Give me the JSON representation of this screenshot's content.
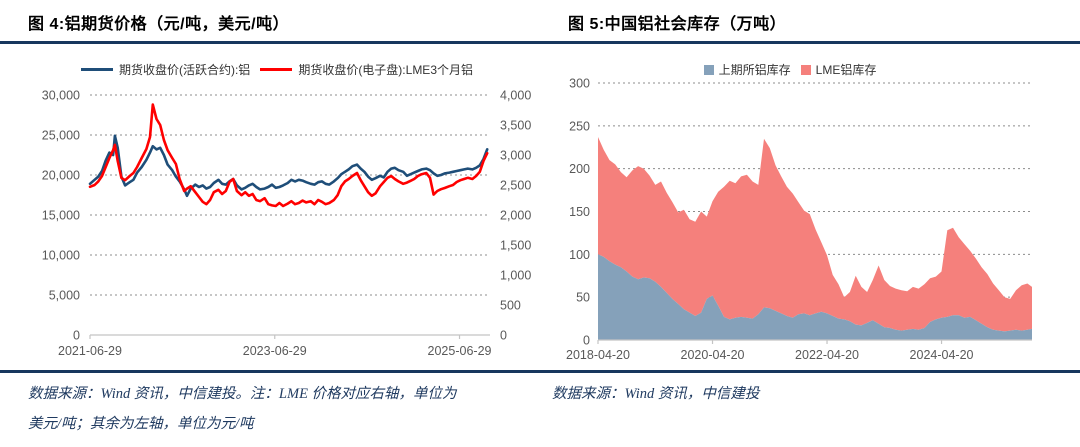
{
  "header": {
    "figure4_title": "图 4:铝期货价格（元/吨，美元/吨）",
    "figure5_title": "图 5:中国铝社会库存（万吨）"
  },
  "footer": {
    "figure4_source_line1": "数据来源：Wind 资讯，中信建投。注：LME 价格对应右轴，单位为",
    "figure4_source_line2": "美元/吨；其余为左轴，单位为元/吨",
    "figure5_source": "数据来源：Wind 资讯，中信建投"
  },
  "colors": {
    "rule": "#17375e",
    "shfe_line": "#1f4e79",
    "lme_line": "#ff0000",
    "shfe_area": "#85a1ba",
    "lme_area": "#f5807c",
    "axis_text": "#595959",
    "grid": "#8c8c8c",
    "baseline": "#c4c4c4",
    "footer_text": "#1f3a60"
  },
  "chart_data": [
    {
      "type": "line",
      "title": "铝期货价格（元/吨，美元/吨）",
      "legend_position": "top",
      "grid": true,
      "x_range": [
        2021.49,
        2025.82
      ],
      "x_ticks": [
        "2021-06-29",
        "2023-06-29",
        "2025-06-29"
      ],
      "x_tick_years": [
        2021.49,
        2023.49,
        2025.49
      ],
      "left_axis": {
        "unit": "元/吨",
        "range": [
          0,
          30000
        ],
        "ticks": [
          "0",
          "5,000",
          "10,000",
          "15,000",
          "20,000",
          "25,000",
          "30,000"
        ]
      },
      "right_axis": {
        "unit": "美元/吨",
        "range": [
          0,
          4000
        ],
        "ticks": [
          "0",
          "500",
          "1,000",
          "1,500",
          "2,000",
          "2,500",
          "3,000",
          "3,500",
          "4,000"
        ]
      },
      "series": [
        {
          "name": "期货收盘价(活跃合约):铝",
          "axis": "left",
          "color": "#1f4e79",
          "x": [
            2021.49,
            2021.54,
            2021.58,
            2021.62,
            2021.66,
            2021.7,
            2021.74,
            2021.76,
            2021.79,
            2021.83,
            2021.87,
            2021.92,
            2021.96,
            2022.0,
            2022.05,
            2022.1,
            2022.14,
            2022.17,
            2022.21,
            2022.25,
            2022.29,
            2022.33,
            2022.38,
            2022.42,
            2022.46,
            2022.51,
            2022.54,
            2022.58,
            2022.63,
            2022.67,
            2022.71,
            2022.75,
            2022.79,
            2022.83,
            2022.88,
            2022.92,
            2022.96,
            2023.0,
            2023.04,
            2023.08,
            2023.13,
            2023.17,
            2023.21,
            2023.25,
            2023.29,
            2023.33,
            2023.38,
            2023.42,
            2023.46,
            2023.5,
            2023.54,
            2023.58,
            2023.63,
            2023.67,
            2023.71,
            2023.75,
            2023.79,
            2023.83,
            2023.88,
            2023.92,
            2023.96,
            2024.0,
            2024.04,
            2024.08,
            2024.13,
            2024.17,
            2024.21,
            2024.25,
            2024.29,
            2024.33,
            2024.38,
            2024.42,
            2024.46,
            2024.5,
            2024.54,
            2024.58,
            2024.63,
            2024.67,
            2024.71,
            2024.75,
            2024.79,
            2024.83,
            2024.88,
            2024.92,
            2024.96,
            2025.0,
            2025.04,
            2025.08,
            2025.13,
            2025.17,
            2025.21,
            2025.25,
            2025.29,
            2025.33,
            2025.38,
            2025.42,
            2025.46,
            2025.5,
            2025.54,
            2025.58,
            2025.63,
            2025.67,
            2025.71,
            2025.75,
            2025.79
          ],
          "values": [
            18900,
            19400,
            19800,
            20500,
            21800,
            22800,
            22500,
            24900,
            23400,
            19800,
            18700,
            19100,
            19400,
            20300,
            21000,
            21900,
            22800,
            23600,
            23200,
            23400,
            22500,
            21300,
            20600,
            19800,
            19200,
            18200,
            17400,
            18300,
            18800,
            18500,
            18700,
            18300,
            18500,
            19000,
            19400,
            18900,
            18800,
            19200,
            19500,
            18700,
            18200,
            18400,
            18700,
            18900,
            18500,
            18200,
            18300,
            18500,
            18800,
            18400,
            18500,
            18700,
            19000,
            19400,
            19200,
            19400,
            19300,
            19100,
            18900,
            18800,
            19100,
            19200,
            18900,
            18800,
            19200,
            19600,
            20100,
            20400,
            20700,
            21100,
            21300,
            20800,
            20400,
            19800,
            19400,
            19600,
            19900,
            19700,
            20400,
            20800,
            20900,
            20600,
            20400,
            19900,
            20100,
            20300,
            20500,
            20700,
            20800,
            20600,
            20200,
            19900,
            20000,
            20200,
            20300,
            20400,
            20500,
            20600,
            20700,
            20800,
            20700,
            20900,
            21200,
            22000,
            23200
          ]
        },
        {
          "name": "期货收盘价(电子盘):LME3个月铝",
          "axis": "right",
          "color": "#ff0000",
          "x": [
            2021.49,
            2021.54,
            2021.58,
            2021.62,
            2021.66,
            2021.7,
            2021.74,
            2021.76,
            2021.79,
            2021.83,
            2021.87,
            2021.92,
            2021.96,
            2022.0,
            2022.05,
            2022.1,
            2022.14,
            2022.17,
            2022.21,
            2022.25,
            2022.29,
            2022.33,
            2022.38,
            2022.42,
            2022.46,
            2022.51,
            2022.54,
            2022.58,
            2022.63,
            2022.67,
            2022.71,
            2022.75,
            2022.79,
            2022.83,
            2022.88,
            2022.92,
            2022.96,
            2023.0,
            2023.04,
            2023.08,
            2023.13,
            2023.17,
            2023.21,
            2023.25,
            2023.29,
            2023.33,
            2023.38,
            2023.42,
            2023.46,
            2023.5,
            2023.54,
            2023.58,
            2023.63,
            2023.67,
            2023.71,
            2023.75,
            2023.79,
            2023.83,
            2023.88,
            2023.92,
            2023.96,
            2024.0,
            2024.04,
            2024.08,
            2024.13,
            2024.17,
            2024.21,
            2024.25,
            2024.29,
            2024.33,
            2024.38,
            2024.42,
            2024.46,
            2024.5,
            2024.54,
            2024.58,
            2024.63,
            2024.67,
            2024.71,
            2024.75,
            2024.79,
            2024.83,
            2024.88,
            2024.92,
            2024.96,
            2025.0,
            2025.04,
            2025.08,
            2025.13,
            2025.17,
            2025.21,
            2025.25,
            2025.29,
            2025.33,
            2025.38,
            2025.42,
            2025.46,
            2025.5,
            2025.54,
            2025.58,
            2025.63,
            2025.67,
            2025.71,
            2025.75,
            2025.79
          ],
          "values": [
            2470,
            2500,
            2560,
            2650,
            2800,
            2950,
            3080,
            3170,
            2900,
            2620,
            2580,
            2650,
            2700,
            2800,
            2950,
            3100,
            3300,
            3840,
            3600,
            3500,
            3250,
            3080,
            2950,
            2850,
            2600,
            2400,
            2440,
            2480,
            2380,
            2300,
            2220,
            2180,
            2250,
            2380,
            2420,
            2350,
            2400,
            2550,
            2600,
            2400,
            2330,
            2380,
            2320,
            2350,
            2250,
            2230,
            2280,
            2180,
            2160,
            2150,
            2200,
            2150,
            2190,
            2230,
            2180,
            2200,
            2240,
            2210,
            2230,
            2180,
            2250,
            2220,
            2180,
            2200,
            2250,
            2330,
            2480,
            2560,
            2600,
            2650,
            2700,
            2580,
            2480,
            2380,
            2320,
            2360,
            2480,
            2550,
            2620,
            2650,
            2600,
            2560,
            2520,
            2540,
            2570,
            2600,
            2650,
            2680,
            2700,
            2620,
            2340,
            2400,
            2430,
            2450,
            2480,
            2500,
            2550,
            2580,
            2600,
            2620,
            2600,
            2650,
            2720,
            2900,
            3030
          ]
        }
      ]
    },
    {
      "type": "area",
      "stacked": true,
      "title": "中国铝社会库存（万吨）",
      "legend_position": "top",
      "grid": true,
      "x_range": [
        2018.3,
        2025.88
      ],
      "x_ticks": [
        "2018-04-20",
        "2020-04-20",
        "2022-04-20",
        "2024-04-20"
      ],
      "x_tick_years": [
        2018.3,
        2020.3,
        2022.3,
        2024.3
      ],
      "y_axis": {
        "unit": "万吨",
        "range": [
          0,
          300
        ],
        "ticks": [
          "0",
          "50",
          "100",
          "150",
          "200",
          "250",
          "300"
        ]
      },
      "x": [
        2018.3,
        2018.4,
        2018.5,
        2018.6,
        2018.7,
        2018.8,
        2018.9,
        2019.0,
        2019.1,
        2019.2,
        2019.3,
        2019.4,
        2019.5,
        2019.6,
        2019.7,
        2019.8,
        2019.9,
        2020.0,
        2020.1,
        2020.2,
        2020.3,
        2020.4,
        2020.5,
        2020.6,
        2020.7,
        2020.8,
        2020.9,
        2021.0,
        2021.1,
        2021.2,
        2021.3,
        2021.4,
        2021.5,
        2021.6,
        2021.7,
        2021.8,
        2021.9,
        2022.0,
        2022.1,
        2022.2,
        2022.3,
        2022.4,
        2022.5,
        2022.6,
        2022.7,
        2022.8,
        2022.9,
        2023.0,
        2023.1,
        2023.2,
        2023.3,
        2023.4,
        2023.5,
        2023.6,
        2023.7,
        2023.8,
        2023.9,
        2024.0,
        2024.1,
        2024.2,
        2024.3,
        2024.4,
        2024.5,
        2024.6,
        2024.7,
        2024.8,
        2024.9,
        2025.0,
        2025.1,
        2025.2,
        2025.3,
        2025.4,
        2025.5,
        2025.6,
        2025.7,
        2025.8,
        2025.88
      ],
      "series": [
        {
          "name": "上期所铝库存",
          "color": "#85a1ba",
          "values": [
            100,
            97,
            92,
            88,
            85,
            80,
            74,
            71,
            73,
            72,
            68,
            62,
            55,
            48,
            42,
            36,
            32,
            28,
            32,
            48,
            52,
            40,
            27,
            24,
            26,
            27,
            26,
            25,
            30,
            38,
            37,
            34,
            31,
            28,
            26,
            30,
            31,
            29,
            31,
            33,
            31,
            28,
            25,
            24,
            22,
            18,
            17,
            20,
            23,
            19,
            15,
            14,
            12,
            11,
            12,
            13,
            12,
            14,
            21,
            24,
            26,
            27,
            29,
            29,
            26,
            27,
            23,
            19,
            15,
            12,
            11,
            10,
            11,
            12,
            11,
            12,
            13
          ]
        },
        {
          "name": "LME铝库存",
          "color": "#f5807c",
          "values": [
            137,
            125,
            118,
            117,
            111,
            110,
            124,
            132,
            127,
            120,
            113,
            123,
            117,
            113,
            107,
            116,
            109,
            110,
            118,
            96,
            110,
            133,
            152,
            162,
            157,
            164,
            167,
            160,
            151,
            197,
            187,
            170,
            160,
            151,
            145,
            131,
            120,
            118,
            98,
            81,
            68,
            48,
            40,
            26,
            34,
            57,
            45,
            36,
            47,
            68,
            55,
            49,
            48,
            47,
            45,
            49,
            48,
            51,
            51,
            50,
            54,
            101,
            102,
            91,
            86,
            77,
            72,
            66,
            62,
            54,
            47,
            40,
            37,
            46,
            53,
            54,
            49
          ]
        }
      ]
    }
  ]
}
